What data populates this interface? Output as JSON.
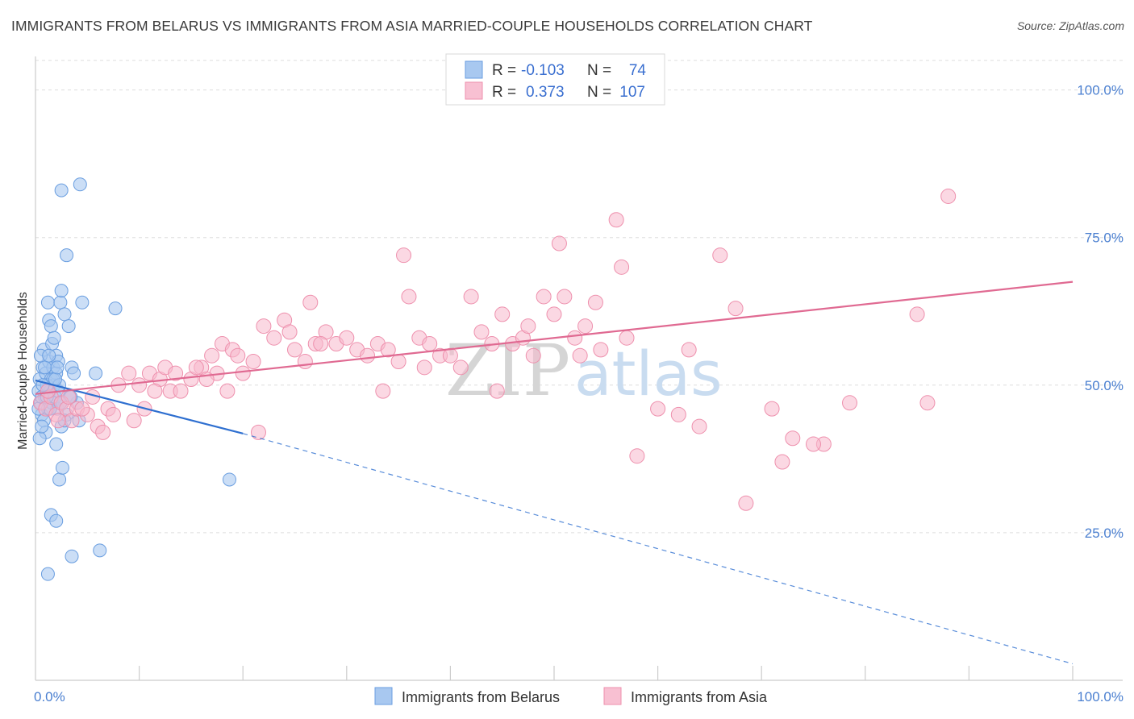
{
  "title": "IMMIGRANTS FROM BELARUS VS IMMIGRANTS FROM ASIA MARRIED-COUPLE HOUSEHOLDS CORRELATION CHART",
  "source": "Source: ZipAtlas.com",
  "watermark": {
    "zip": "ZIP",
    "atlas": "atlas"
  },
  "legend": {
    "series1": {
      "r_label": "R =",
      "r_value": "-0.103",
      "n_label": "N =",
      "n_value": "74"
    },
    "series2": {
      "r_label": "R =",
      "r_value": "0.373",
      "n_label": "N =",
      "n_value": "107"
    }
  },
  "colors": {
    "belarus_fill": "#a8c8f0",
    "belarus_stroke": "#6a9ee0",
    "belarus_line": "#2e6fd0",
    "asia_fill": "#f8b8cc",
    "asia_stroke": "#ee90ad",
    "asia_line": "#e06a92",
    "grid": "#dddddd",
    "axis_label": "#4a7fd0"
  },
  "chart_data": {
    "type": "scatter",
    "title": "IMMIGRANTS FROM BELARUS VS IMMIGRANTS FROM ASIA MARRIED-COUPLE HOUSEHOLDS CORRELATION CHART",
    "xlabel": "",
    "ylabel": "Married-couple Households",
    "xlim": [
      0,
      100
    ],
    "ylim": [
      0,
      105
    ],
    "x_tick_labels": [
      "0.0%",
      "100.0%"
    ],
    "y_tick_labels": [
      "25.0%",
      "50.0%",
      "75.0%",
      "100.0%"
    ],
    "y_ticks": [
      25,
      50,
      75,
      100
    ],
    "series": [
      {
        "name": "Immigrants from Belarus",
        "r": -0.103,
        "n": 74,
        "trend": {
          "x": [
            0,
            20
          ],
          "y": [
            50.8,
            41.8
          ],
          "dashed_to": {
            "x": 100,
            "y": 2.8
          }
        },
        "points": [
          [
            0.3,
            49
          ],
          [
            0.4,
            51
          ],
          [
            0.5,
            47
          ],
          [
            0.6,
            45
          ],
          [
            0.7,
            53
          ],
          [
            0.8,
            56
          ],
          [
            0.9,
            48
          ],
          [
            1.0,
            52
          ],
          [
            1.1,
            50
          ],
          [
            1.2,
            46
          ],
          [
            1.3,
            54
          ],
          [
            1.4,
            49
          ],
          [
            1.5,
            51
          ],
          [
            1.6,
            47
          ],
          [
            1.7,
            53
          ],
          [
            1.8,
            50
          ],
          [
            1.9,
            48
          ],
          [
            2.0,
            52
          ],
          [
            2.1,
            46
          ],
          [
            2.2,
            49
          ],
          [
            0.5,
            55
          ],
          [
            0.8,
            44
          ],
          [
            1.0,
            42
          ],
          [
            1.2,
            64
          ],
          [
            1.3,
            61
          ],
          [
            1.5,
            60
          ],
          [
            1.6,
            57
          ],
          [
            1.8,
            58
          ],
          [
            2.0,
            55
          ],
          [
            2.2,
            54
          ],
          [
            2.4,
            64
          ],
          [
            2.5,
            66
          ],
          [
            2.8,
            62
          ],
          [
            3.0,
            72
          ],
          [
            3.2,
            60
          ],
          [
            3.5,
            53
          ],
          [
            3.7,
            52
          ],
          [
            2.0,
            40
          ],
          [
            2.5,
            43
          ],
          [
            3.0,
            45
          ],
          [
            1.5,
            28
          ],
          [
            2.0,
            27
          ],
          [
            2.3,
            34
          ],
          [
            2.6,
            36
          ],
          [
            3.5,
            21
          ],
          [
            6.2,
            22
          ],
          [
            1.2,
            18
          ],
          [
            2.5,
            83
          ],
          [
            4.3,
            84
          ],
          [
            4.5,
            64
          ],
          [
            7.7,
            63
          ],
          [
            5.8,
            52
          ],
          [
            4.0,
            47
          ],
          [
            4.2,
            44
          ],
          [
            3.3,
            48
          ],
          [
            0.4,
            41
          ],
          [
            0.6,
            43
          ],
          [
            1.1,
            50
          ],
          [
            1.4,
            46
          ],
          [
            1.7,
            51
          ],
          [
            2.3,
            50
          ],
          [
            2.6,
            47
          ],
          [
            0.9,
            53
          ],
          [
            1.3,
            55
          ],
          [
            0.3,
            46
          ],
          [
            0.6,
            48
          ],
          [
            18.7,
            34
          ],
          [
            2.8,
            44
          ],
          [
            3.4,
            48
          ],
          [
            1.9,
            51
          ],
          [
            1.1,
            48
          ],
          [
            0.7,
            50
          ],
          [
            2.1,
            53
          ],
          [
            2.4,
            47
          ]
        ]
      },
      {
        "name": "Immigrants from Asia",
        "r": 0.373,
        "n": 107,
        "trend": {
          "x": [
            0,
            100
          ],
          "y": [
            48.5,
            67.5
          ]
        },
        "points": [
          [
            0.5,
            47
          ],
          [
            1.0,
            46
          ],
          [
            1.5,
            48
          ],
          [
            2.0,
            45
          ],
          [
            2.5,
            47
          ],
          [
            3.0,
            46
          ],
          [
            3.5,
            44
          ],
          [
            4.0,
            46
          ],
          [
            5.0,
            45
          ],
          [
            5.5,
            48
          ],
          [
            6.0,
            43
          ],
          [
            7.0,
            46
          ],
          [
            8.0,
            50
          ],
          [
            9.0,
            52
          ],
          [
            10.0,
            50
          ],
          [
            11.0,
            52
          ],
          [
            12.0,
            51
          ],
          [
            13.0,
            49
          ],
          [
            14.0,
            49
          ],
          [
            15.0,
            51
          ],
          [
            16.0,
            53
          ],
          [
            17.0,
            55
          ],
          [
            17.5,
            52
          ],
          [
            18.0,
            57
          ],
          [
            19.0,
            56
          ],
          [
            20.0,
            52
          ],
          [
            21.0,
            54
          ],
          [
            22.0,
            60
          ],
          [
            23.0,
            58
          ],
          [
            24.0,
            61
          ],
          [
            25.0,
            56
          ],
          [
            26.0,
            54
          ],
          [
            26.5,
            64
          ],
          [
            27.0,
            57
          ],
          [
            28.0,
            59
          ],
          [
            29.0,
            57
          ],
          [
            30.0,
            58
          ],
          [
            31.0,
            56
          ],
          [
            32.0,
            55
          ],
          [
            33.0,
            57
          ],
          [
            34.0,
            56
          ],
          [
            35.0,
            54
          ],
          [
            35.5,
            72
          ],
          [
            36.0,
            65
          ],
          [
            37.0,
            58
          ],
          [
            38.0,
            57
          ],
          [
            39.0,
            55
          ],
          [
            40.0,
            55
          ],
          [
            41.0,
            53
          ],
          [
            42.0,
            65
          ],
          [
            43.0,
            59
          ],
          [
            44.0,
            57
          ],
          [
            45.0,
            62
          ],
          [
            46.0,
            57
          ],
          [
            47.0,
            58
          ],
          [
            48.0,
            55
          ],
          [
            49.0,
            65
          ],
          [
            50.0,
            62
          ],
          [
            50.5,
            74
          ],
          [
            51.0,
            65
          ],
          [
            52.0,
            58
          ],
          [
            53.0,
            60
          ],
          [
            54.0,
            64
          ],
          [
            56.0,
            78
          ],
          [
            57.0,
            58
          ],
          [
            58.0,
            38
          ],
          [
            60.0,
            46
          ],
          [
            62.0,
            45
          ],
          [
            64.0,
            43
          ],
          [
            67.5,
            63
          ],
          [
            68.5,
            30
          ],
          [
            71.0,
            46
          ],
          [
            72.0,
            37
          ],
          [
            73.0,
            41
          ],
          [
            76.0,
            40
          ],
          [
            78.5,
            47
          ],
          [
            85.0,
            62
          ],
          [
            88.0,
            82
          ],
          [
            1.2,
            49
          ],
          [
            2.2,
            44
          ],
          [
            3.2,
            48
          ],
          [
            4.5,
            46
          ],
          [
            6.5,
            42
          ],
          [
            7.5,
            45
          ],
          [
            9.5,
            44
          ],
          [
            10.5,
            46
          ],
          [
            11.5,
            49
          ],
          [
            12.5,
            53
          ],
          [
            13.5,
            52
          ],
          [
            15.5,
            53
          ],
          [
            16.5,
            51
          ],
          [
            18.5,
            49
          ],
          [
            19.5,
            55
          ],
          [
            21.5,
            42
          ],
          [
            24.5,
            59
          ],
          [
            27.5,
            57
          ],
          [
            33.5,
            49
          ],
          [
            37.5,
            53
          ],
          [
            44.5,
            49
          ],
          [
            47.5,
            60
          ],
          [
            52.5,
            55
          ],
          [
            54.5,
            56
          ],
          [
            56.5,
            70
          ],
          [
            63.0,
            56
          ],
          [
            66.0,
            72
          ],
          [
            75.0,
            40
          ],
          [
            86.0,
            47
          ]
        ]
      }
    ]
  },
  "bottom_legend": {
    "series1_label": "Immigrants from Belarus",
    "series2_label": "Immigrants from Asia"
  }
}
